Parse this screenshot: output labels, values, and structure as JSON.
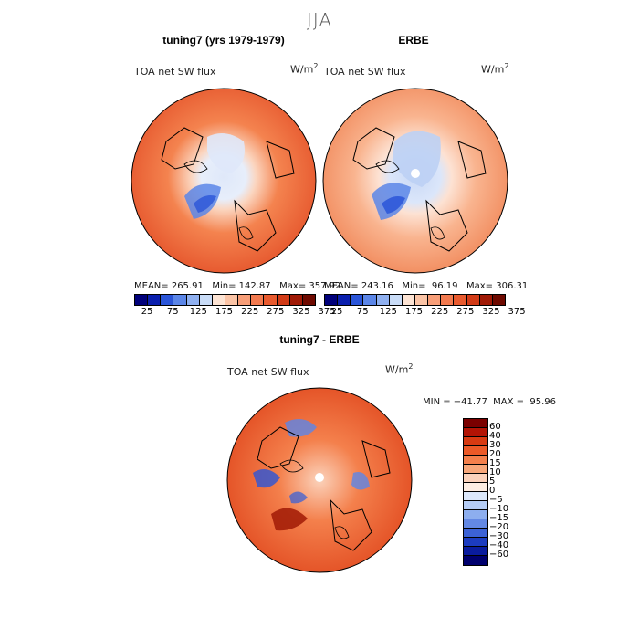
{
  "figure": {
    "title": "JJA"
  },
  "panels": [
    {
      "title": "tuning7 (yrs 1979-1979)",
      "variable": "TOA net SW flux",
      "units": "W/m",
      "units_sup": "2",
      "stats": "MEAN= 265.91   Min= 142.87   Max= 357.92"
    },
    {
      "title": "ERBE",
      "variable": "TOA net SW flux",
      "units": "W/m",
      "units_sup": "2",
      "stats": "MEAN= 243.16   Min=  96.19   Max= 306.31"
    },
    {
      "title": "tuning7 - ERBE",
      "variable": "TOA net SW flux",
      "units": "W/m",
      "units_sup": "2",
      "stats": "MIN = −41.77  MAX =  95.96"
    }
  ],
  "colorbar_abs": {
    "colors": [
      "#00007a",
      "#0a1fae",
      "#2a55d8",
      "#5b86e8",
      "#8fb0f0",
      "#c9dcf7",
      "#fde4d4",
      "#fbc4a6",
      "#f79e78",
      "#f27a4f",
      "#e85a2e",
      "#d23b17",
      "#a01a06",
      "#6e0a00"
    ],
    "labels": [
      "25",
      "75",
      "125",
      "175",
      "225",
      "275",
      "325",
      "375"
    ]
  },
  "colorbar_diff": {
    "colors": [
      "#7a0000",
      "#b31405",
      "#d83a12",
      "#ec5a28",
      "#f4804c",
      "#f7a77a",
      "#fbd2bb",
      "#fdeee3",
      "#dce8fb",
      "#b5cdf6",
      "#8daeef",
      "#6388e4",
      "#3c62d6",
      "#1c3cc0",
      "#0a1c9e",
      "#00006e"
    ],
    "labels": [
      "60",
      "40",
      "30",
      "20",
      "15",
      "10",
      "5",
      "0",
      "−5",
      "−10",
      "−15",
      "−20",
      "−30",
      "−40",
      "−60"
    ]
  },
  "chart_data": [
    {
      "type": "heatmap",
      "title": "tuning7 (yrs 1979-1979)",
      "projection": "north polar stereographic",
      "variable": "TOA net SW flux",
      "units": "W/m2",
      "mean": 265.91,
      "min": 142.87,
      "max": 357.92,
      "colorbar_ticks": [
        25,
        75,
        125,
        175,
        225,
        275,
        325,
        375
      ]
    },
    {
      "type": "heatmap",
      "title": "ERBE",
      "projection": "north polar stereographic",
      "variable": "TOA net SW flux",
      "units": "W/m2",
      "mean": 243.16,
      "min": 96.19,
      "max": 306.31,
      "colorbar_ticks": [
        25,
        75,
        125,
        175,
        225,
        275,
        325,
        375
      ]
    },
    {
      "type": "heatmap",
      "title": "tuning7 - ERBE",
      "projection": "north polar stereographic",
      "variable": "TOA net SW flux",
      "units": "W/m2",
      "min": -41.77,
      "max": 95.96,
      "colorbar_ticks": [
        60,
        40,
        30,
        20,
        15,
        10,
        5,
        0,
        -5,
        -10,
        -15,
        -20,
        -30,
        -40,
        -60
      ]
    }
  ]
}
